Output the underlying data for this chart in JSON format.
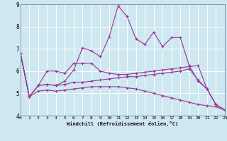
{
  "xlabel": "Windchill (Refroidissement éolien,°C)",
  "bg_color": "#cde8f0",
  "grid_color": "#ffffff",
  "line_color": "#993399",
  "xmin": 0,
  "xmax": 23,
  "ymin": 4,
  "ymax": 9,
  "yticks": [
    4,
    5,
    6,
    7,
    8,
    9
  ],
  "xticks": [
    0,
    1,
    2,
    3,
    4,
    5,
    6,
    7,
    8,
    9,
    10,
    11,
    12,
    13,
    14,
    15,
    16,
    17,
    18,
    19,
    20,
    21,
    22,
    23
  ],
  "lines": [
    {
      "x": [
        0,
        1,
        2,
        3,
        4,
        5,
        6,
        7,
        8,
        9,
        10,
        11,
        12,
        13,
        14,
        15,
        16,
        17,
        18,
        19,
        20,
        21,
        22,
        23
      ],
      "y": [
        6.8,
        4.85,
        5.35,
        5.4,
        5.35,
        5.55,
        6.05,
        7.05,
        6.9,
        6.65,
        7.55,
        8.93,
        8.45,
        7.45,
        7.2,
        7.75,
        7.1,
        7.5,
        7.5,
        6.25,
        5.55,
        5.2,
        4.5,
        4.25
      ]
    },
    {
      "x": [
        0,
        1,
        2,
        3,
        4,
        5,
        6,
        7,
        8,
        9,
        10,
        11,
        12,
        13,
        14,
        15,
        16,
        17,
        18,
        19,
        20,
        21,
        22,
        23
      ],
      "y": [
        6.8,
        4.85,
        5.35,
        6.0,
        6.0,
        5.9,
        6.35,
        6.35,
        6.35,
        6.0,
        5.9,
        5.85,
        5.85,
        5.9,
        5.95,
        6.0,
        6.05,
        6.1,
        6.15,
        6.2,
        6.25,
        5.2,
        4.5,
        4.25
      ]
    },
    {
      "x": [
        0,
        1,
        2,
        3,
        4,
        5,
        6,
        7,
        8,
        9,
        10,
        11,
        12,
        13,
        14,
        15,
        16,
        17,
        18,
        19,
        20,
        21,
        22,
        23
      ],
      "y": [
        6.8,
        4.85,
        5.35,
        5.4,
        5.35,
        5.4,
        5.5,
        5.5,
        5.55,
        5.6,
        5.65,
        5.7,
        5.75,
        5.75,
        5.8,
        5.85,
        5.9,
        5.95,
        6.0,
        6.1,
        5.6,
        5.2,
        4.5,
        4.25
      ]
    },
    {
      "x": [
        0,
        1,
        2,
        3,
        4,
        5,
        6,
        7,
        8,
        9,
        10,
        11,
        12,
        13,
        14,
        15,
        16,
        17,
        18,
        19,
        20,
        21,
        22,
        23
      ],
      "y": [
        6.8,
        4.85,
        5.1,
        5.15,
        5.1,
        5.15,
        5.2,
        5.25,
        5.3,
        5.3,
        5.3,
        5.3,
        5.25,
        5.2,
        5.1,
        5.0,
        4.9,
        4.8,
        4.7,
        4.6,
        4.5,
        4.45,
        4.4,
        4.25
      ]
    }
  ]
}
